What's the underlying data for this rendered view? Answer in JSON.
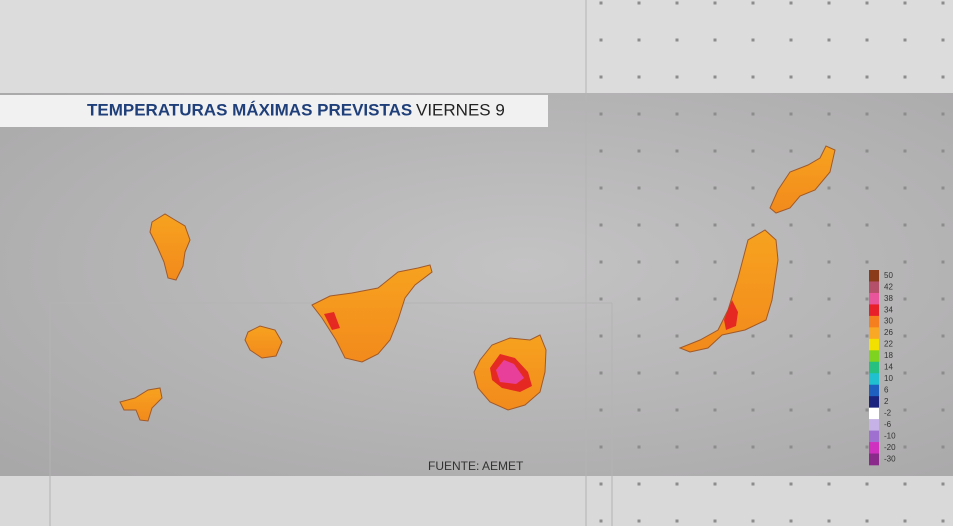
{
  "header": {
    "title": "TEMPERATURAS MÁXIMAS PREVISTAS",
    "day": "VIERNES 9"
  },
  "source": "FUENTE: AEMET",
  "legend": {
    "labels": [
      50,
      42,
      38,
      34,
      30,
      26,
      22,
      18,
      14,
      10,
      6,
      2,
      -2,
      -6,
      -10,
      -20,
      -30
    ],
    "colors": [
      "#8b3a1a",
      "#b5506a",
      "#e8559a",
      "#e8202a",
      "#f57e1e",
      "#f9a825",
      "#f2e100",
      "#7ed321",
      "#26c080",
      "#20c0d0",
      "#1e60c0",
      "#1a237e",
      "#ffffff",
      "#c6b2e6",
      "#a070d0",
      "#d030c0",
      "#8a2a8a"
    ]
  }
}
